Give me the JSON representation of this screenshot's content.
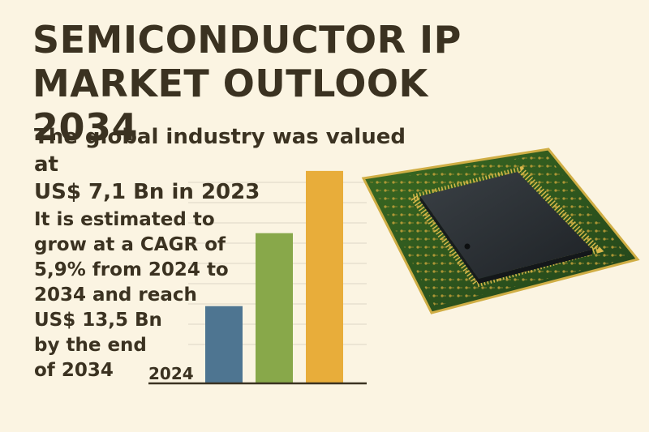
{
  "header": {
    "title_line1": "SEMICONDUCTOR IP",
    "title_line2": "MARKET OUTLOOK 2034"
  },
  "summary": {
    "line1": "The global industry was valued at",
    "line2": "US$ 7,1 Bn in 2023"
  },
  "forecast": {
    "lines": [
      "It is estimated to",
      "grow at a CAGR of",
      "5,9% from 2024 to",
      "2034 and reach",
      "US$ 13,5 Bn",
      "by the end",
      "of 2034"
    ]
  },
  "chart_data": {
    "type": "bar",
    "x_label_shown": "2024",
    "values": [
      3.6,
      7.0,
      9.9
    ],
    "ylim": [
      0,
      10.5
    ],
    "grid": true,
    "colors": [
      "#4e7591",
      "#88a84a",
      "#e8ad3a"
    ]
  },
  "colors": {
    "background": "#fbf4e2",
    "text": "#3b3221",
    "pcb": "#2c5219",
    "pcb_trace": "#c6a43c",
    "chip": "#2a2f33"
  },
  "icons": {
    "chip": "microchip-icon"
  }
}
